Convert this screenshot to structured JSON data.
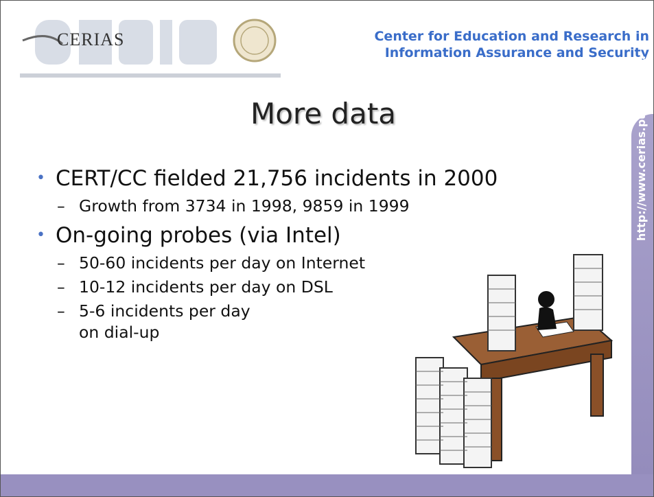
{
  "header": {
    "logo_text": "CERIAS",
    "org_lines": [
      "Center for Education and Research in",
      "Information Assurance and Security"
    ]
  },
  "side_url": "http://www.cerias.purdue.edu",
  "slide": {
    "title": "More data",
    "bullets": [
      {
        "text": "CERT/CC fielded 21,756 incidents in 2000",
        "sub": [
          "Growth from 3734 in 1998, 9859 in 1999"
        ]
      },
      {
        "text": "On-going probes (via Intel)",
        "sub": [
          "50-60 incidents per day on Internet",
          "10-12 incidents per day on DSL",
          "5-6 incidents per day on dial-up"
        ]
      }
    ]
  }
}
